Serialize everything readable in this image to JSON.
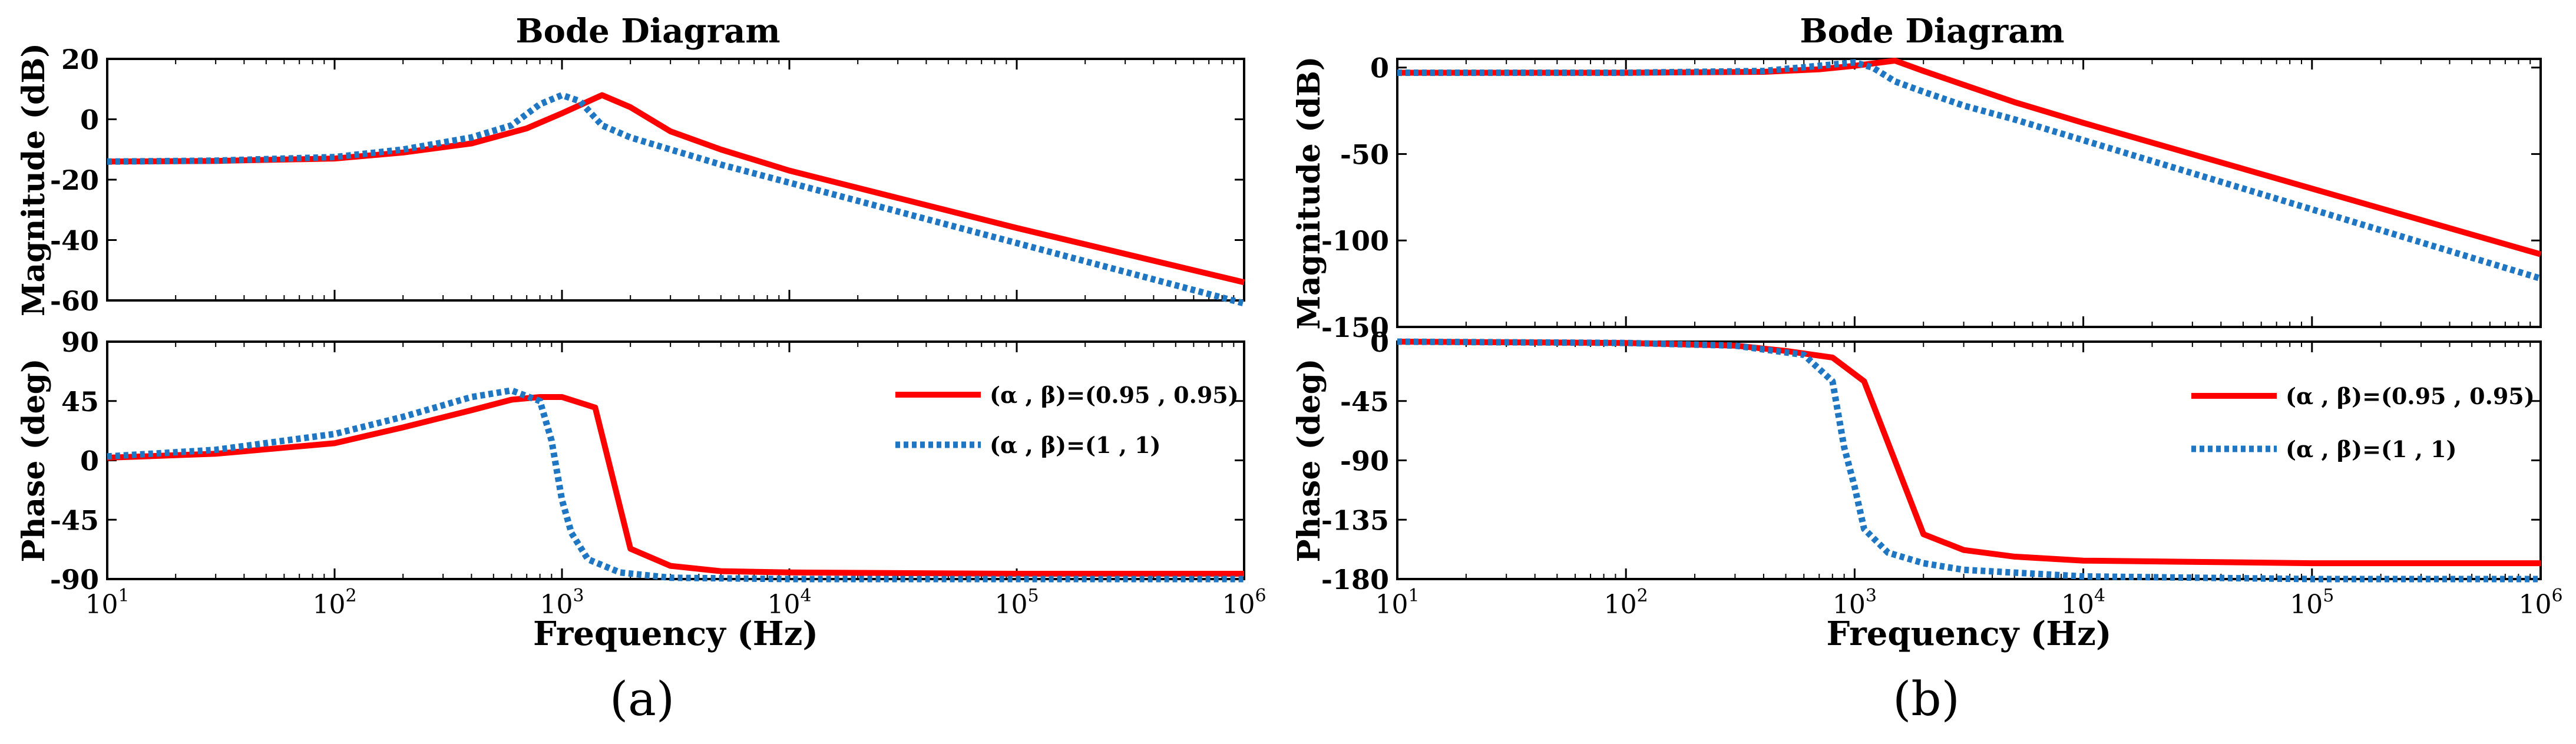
{
  "colors": {
    "series_a": "#ff0000",
    "series_b": "#1f77c4",
    "axis": "#000000",
    "background": "#ffffff"
  },
  "chart_data": [
    {
      "type": "line",
      "panel": "(a)",
      "title": "Bode Diagram",
      "xlabel": "Frequency (Hz)",
      "xscale": "log",
      "xlim": [
        10,
        1000000
      ],
      "xtick_labels": [
        {
          "base": "10",
          "exp": "1"
        },
        {
          "base": "10",
          "exp": "2"
        },
        {
          "base": "10",
          "exp": "3"
        },
        {
          "base": "10",
          "exp": "4"
        },
        {
          "base": "10",
          "exp": "5"
        },
        {
          "base": "10",
          "exp": "6"
        }
      ],
      "subplots": [
        {
          "name": "magnitude",
          "ylabel": "Magnitude (dB)",
          "ylim": [
            -60,
            20
          ],
          "yticks": [
            -60,
            -40,
            -20,
            0,
            20
          ],
          "ytick_labels": [
            "-60",
            "-40",
            "-20",
            "0",
            "20"
          ],
          "series": [
            {
              "name": "(α , β)=(0.95 , 0.95)",
              "style": "solid",
              "x": [
                10,
                30,
                100,
                200,
                400,
                700,
                1000,
                1500,
                2000,
                3000,
                5000,
                10000,
                100000,
                1000000
              ],
              "y": [
                -14,
                -13.8,
                -13,
                -11,
                -8,
                -3,
                2,
                8,
                4,
                -4,
                -10,
                -17,
                -36,
                -54
              ]
            },
            {
              "name": "(α , β)=(1 , 1)",
              "style": "dotted",
              "x": [
                10,
                30,
                100,
                200,
                400,
                600,
                800,
                1000,
                1200,
                1500,
                2000,
                3000,
                5000,
                10000,
                100000,
                1000000
              ],
              "y": [
                -14,
                -13.7,
                -12.5,
                -10,
                -6,
                -2,
                5,
                8,
                6,
                -2,
                -6,
                -10,
                -15,
                -21,
                -41,
                -61
              ]
            }
          ]
        },
        {
          "name": "phase",
          "ylabel": "Phase (deg)",
          "ylim": [
            -90,
            90
          ],
          "yticks": [
            -90,
            -45,
            0,
            45,
            90
          ],
          "ytick_labels": [
            "-90",
            "-45",
            "0",
            "45",
            "90"
          ],
          "series": [
            {
              "name": "(α , β)=(0.95 , 0.95)",
              "style": "solid",
              "x": [
                10,
                30,
                100,
                200,
                400,
                600,
                800,
                1000,
                1400,
                2000,
                3000,
                5000,
                10000,
                100000,
                1000000
              ],
              "y": [
                2,
                5,
                13,
                25,
                38,
                46,
                48,
                48,
                40,
                -67,
                -80,
                -84,
                -85,
                -86,
                -86
              ]
            },
            {
              "name": "(α , β)=(1 , 1)",
              "style": "dotted",
              "x": [
                10,
                30,
                100,
                200,
                400,
                600,
                800,
                900,
                1000,
                1100,
                1300,
                1800,
                3000,
                10000,
                100000,
                1000000
              ],
              "y": [
                3,
                8,
                20,
                33,
                48,
                53,
                45,
                15,
                -30,
                -55,
                -75,
                -85,
                -89,
                -90,
                -90,
                -90
              ]
            }
          ]
        }
      ],
      "legend": {
        "placement": "right, phase subplot",
        "entries": [
          "(α , β)=(0.95 , 0.95)",
          "(α , β)=(1 , 1)"
        ]
      }
    },
    {
      "type": "line",
      "panel": "(b)",
      "title": "Bode Diagram",
      "xlabel": "Frequency (Hz)",
      "xscale": "log",
      "xlim": [
        10,
        1000000
      ],
      "xtick_labels": [
        {
          "base": "10",
          "exp": "1"
        },
        {
          "base": "10",
          "exp": "2"
        },
        {
          "base": "10",
          "exp": "3"
        },
        {
          "base": "10",
          "exp": "4"
        },
        {
          "base": "10",
          "exp": "5"
        },
        {
          "base": "10",
          "exp": "6"
        }
      ],
      "subplots": [
        {
          "name": "magnitude",
          "ylabel": "Magnitude (dB)",
          "ylim": [
            -150,
            5
          ],
          "yticks": [
            -150,
            -100,
            -50,
            0
          ],
          "ytick_labels": [
            "-150",
            "-100",
            "-50",
            "0"
          ],
          "series": [
            {
              "name": "(α , β)=(0.95 , 0.95)",
              "style": "solid",
              "x": [
                10,
                100,
                400,
                700,
                1000,
                1500,
                2000,
                3000,
                5000,
                10000,
                100000,
                1000000
              ],
              "y": [
                -3,
                -3,
                -2.5,
                -1,
                1,
                4,
                -2,
                -10,
                -20,
                -32,
                -70,
                -108
              ]
            },
            {
              "name": "(α , β)=(1 , 1)",
              "style": "dotted",
              "x": [
                10,
                100,
                400,
                700,
                1000,
                1200,
                1500,
                2000,
                3000,
                5000,
                10000,
                100000,
                1000000
              ],
              "y": [
                -3,
                -3,
                -2,
                1,
                3,
                0,
                -8,
                -14,
                -22,
                -30,
                -42,
                -82,
                -122
              ]
            }
          ]
        },
        {
          "name": "phase",
          "ylabel": "Phase (deg)",
          "ylim": [
            -180,
            0
          ],
          "yticks": [
            -180,
            -135,
            -90,
            -45,
            0
          ],
          "ytick_labels": [
            "-180",
            "-135",
            "-90",
            "-45",
            "0"
          ],
          "series": [
            {
              "name": "(α , β)=(0.95 , 0.95)",
              "style": "solid",
              "x": [
                10,
                100,
                300,
                500,
                800,
                1100,
                2000,
                3000,
                5000,
                10000,
                100000,
                1000000
              ],
              "y": [
                0,
                -1,
                -3,
                -7,
                -12,
                -30,
                -146,
                -158,
                -163,
                -166,
                -168,
                -168
              ]
            },
            {
              "name": "(α , β)=(1 , 1)",
              "style": "dotted",
              "x": [
                10,
                100,
                300,
                600,
                800,
                900,
                1000,
                1100,
                1400,
                2000,
                3000,
                10000,
                100000,
                1000000
              ],
              "y": [
                0,
                -1,
                -3,
                -10,
                -30,
                -80,
                -110,
                -142,
                -160,
                -168,
                -173,
                -178,
                -180,
                -180
              ]
            }
          ]
        }
      ],
      "legend": {
        "placement": "right, phase subplot",
        "entries": [
          "(α , β)=(0.95 , 0.95)",
          "(α , β)=(1 , 1)"
        ]
      }
    }
  ]
}
